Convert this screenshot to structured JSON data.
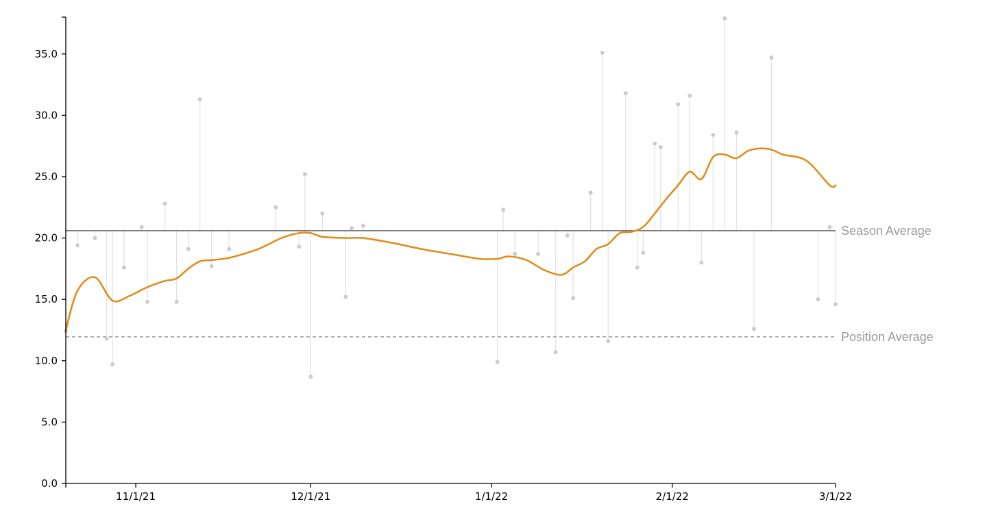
{
  "chart_data": {
    "type": "line",
    "title": "",
    "xlabel": "",
    "ylabel": "",
    "x_range": [
      "2021-10-20",
      "2022-03-01"
    ],
    "ylim": [
      0,
      38
    ],
    "y_ticks": [
      0,
      5,
      10,
      15,
      20,
      25,
      30,
      35
    ],
    "y_tick_labels": [
      "0.0",
      "5.0",
      "10.0",
      "15.0",
      "20.0",
      "25.0",
      "30.0",
      "35.0"
    ],
    "x_ticks": [
      "2021-11-01",
      "2021-12-01",
      "2022-01-01",
      "2022-02-01",
      "2022-03-01"
    ],
    "x_tick_labels": [
      "11/1/21",
      "12/1/21",
      "1/1/22",
      "2/1/22",
      "3/1/22"
    ],
    "grid": false,
    "reference_lines": [
      {
        "label": "Season Average",
        "value": 20.6,
        "style": "solid",
        "color": "#666666"
      },
      {
        "label": "Position Average",
        "value": 11.95,
        "style": "dashed",
        "color": "#888888"
      }
    ],
    "colors": {
      "trend": "#e08e1b",
      "points": "#cccccc",
      "stems": "#e3e3e3",
      "axis": "#000000"
    },
    "games": {
      "x": [
        "2021-10-20",
        "2021-10-22",
        "2021-10-25",
        "2021-10-27",
        "2021-10-28",
        "2021-10-30",
        "2021-11-02",
        "2021-11-03",
        "2021-11-06",
        "2021-11-08",
        "2021-11-10",
        "2021-11-12",
        "2021-11-14",
        "2021-11-17",
        "2021-11-25",
        "2021-11-29",
        "2021-11-30",
        "2021-12-01",
        "2021-12-03",
        "2021-12-07",
        "2021-12-08",
        "2021-12-10",
        "2022-01-02",
        "2022-01-03",
        "2022-01-05",
        "2022-01-09",
        "2022-01-12",
        "2022-01-14",
        "2022-01-15",
        "2022-01-18",
        "2022-01-20",
        "2022-01-21",
        "2022-01-24",
        "2022-01-26",
        "2022-01-27",
        "2022-01-29",
        "2022-01-30",
        "2022-02-02",
        "2022-02-04",
        "2022-02-06",
        "2022-02-08",
        "2022-02-10",
        "2022-02-12",
        "2022-02-15",
        "2022-02-18",
        "2022-02-26",
        "2022-02-28",
        "2022-03-01"
      ],
      "y": [
        12.4,
        19.4,
        20.0,
        11.8,
        9.7,
        17.6,
        20.9,
        14.8,
        22.8,
        14.8,
        19.1,
        31.3,
        17.7,
        19.1,
        22.5,
        19.3,
        25.2,
        8.7,
        22.0,
        15.2,
        20.8,
        21.0,
        9.9,
        22.3,
        18.7,
        18.7,
        10.7,
        20.2,
        15.1,
        23.7,
        35.1,
        11.6,
        31.8,
        17.6,
        18.8,
        27.7,
        27.4,
        30.9,
        31.6,
        18.0,
        28.4,
        37.9,
        28.6,
        12.6,
        34.7,
        15.0,
        20.9,
        14.6
      ]
    },
    "series": [
      {
        "type": "smooth-line",
        "x": [
          "2021-10-20",
          "2021-10-22",
          "2021-10-25",
          "2021-10-28",
          "2021-10-31",
          "2021-11-03",
          "2021-11-06",
          "2021-11-08",
          "2021-11-10",
          "2021-11-12",
          "2021-11-14",
          "2021-11-16",
          "2021-11-18",
          "2021-11-22",
          "2021-11-26",
          "2021-11-29",
          "2021-12-01",
          "2021-12-03",
          "2021-12-07",
          "2021-12-10",
          "2021-12-15",
          "2021-12-20",
          "2021-12-25",
          "2021-12-30",
          "2022-01-02",
          "2022-01-04",
          "2022-01-07",
          "2022-01-10",
          "2022-01-13",
          "2022-01-15",
          "2022-01-17",
          "2022-01-19",
          "2022-01-21",
          "2022-01-23",
          "2022-01-25",
          "2022-01-27",
          "2022-01-29",
          "2022-01-31",
          "2022-02-02",
          "2022-02-04",
          "2022-02-06",
          "2022-02-08",
          "2022-02-10",
          "2022-02-12",
          "2022-02-14",
          "2022-02-16",
          "2022-02-18",
          "2022-02-20",
          "2022-02-24",
          "2022-02-28",
          "2022-03-01"
        ],
        "y": [
          12.5,
          15.7,
          16.8,
          14.9,
          15.3,
          16.0,
          16.5,
          16.7,
          17.5,
          18.1,
          18.2,
          18.3,
          18.5,
          19.1,
          20.0,
          20.4,
          20.4,
          20.1,
          20.0,
          20.0,
          19.6,
          19.1,
          18.7,
          18.3,
          18.3,
          18.5,
          18.2,
          17.4,
          17.0,
          17.6,
          18.1,
          19.1,
          19.5,
          20.4,
          20.5,
          20.9,
          22.0,
          23.2,
          24.3,
          25.4,
          24.8,
          26.6,
          26.8,
          26.5,
          27.1,
          27.3,
          27.2,
          26.8,
          26.3,
          24.3,
          24.3
        ]
      }
    ]
  }
}
